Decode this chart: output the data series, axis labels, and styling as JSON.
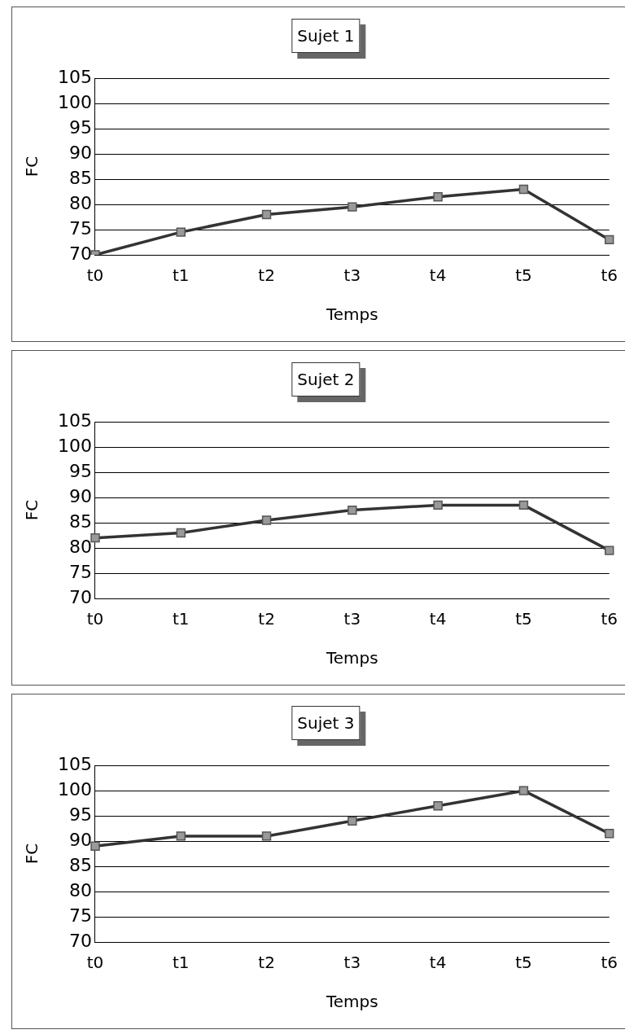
{
  "chart_data": [
    {
      "type": "line",
      "title": "Sujet 1",
      "xlabel": "Temps",
      "ylabel": "FC",
      "categories": [
        "t0",
        "t1",
        "t2",
        "t3",
        "t4",
        "t5",
        "t6"
      ],
      "series": [
        {
          "color": "#333333",
          "values": [
            70,
            74.5,
            78,
            79.5,
            81.5,
            83,
            73
          ]
        }
      ],
      "ylim": [
        70,
        105
      ],
      "yticks": [
        70,
        75,
        80,
        85,
        90,
        95,
        100,
        105
      ],
      "grid": "y",
      "legend": false,
      "marker": "square",
      "line_style": "solid"
    },
    {
      "type": "line",
      "title": "Sujet 2",
      "xlabel": "Temps",
      "ylabel": "FC",
      "categories": [
        "t0",
        "t1",
        "t2",
        "t3",
        "t4",
        "t5",
        "t6"
      ],
      "series": [
        {
          "color": "#333333",
          "values": [
            82,
            83,
            85.5,
            87.5,
            88.5,
            88.5,
            79.5
          ]
        }
      ],
      "ylim": [
        70,
        105
      ],
      "yticks": [
        70,
        75,
        80,
        85,
        90,
        95,
        100,
        105
      ],
      "grid": "y",
      "legend": false,
      "marker": "square",
      "line_style": "solid"
    },
    {
      "type": "line",
      "title": "Sujet 3",
      "xlabel": "Temps",
      "ylabel": "FC",
      "categories": [
        "t0",
        "t1",
        "t2",
        "t3",
        "t4",
        "t5",
        "t6"
      ],
      "series": [
        {
          "color": "#333333",
          "values": [
            89,
            91,
            91,
            94,
            97,
            100,
            91.5
          ]
        }
      ],
      "ylim": [
        70,
        105
      ],
      "yticks": [
        70,
        75,
        80,
        85,
        90,
        95,
        100,
        105
      ],
      "grid": "y",
      "legend": false,
      "marker": "square",
      "line_style": "solid"
    }
  ]
}
